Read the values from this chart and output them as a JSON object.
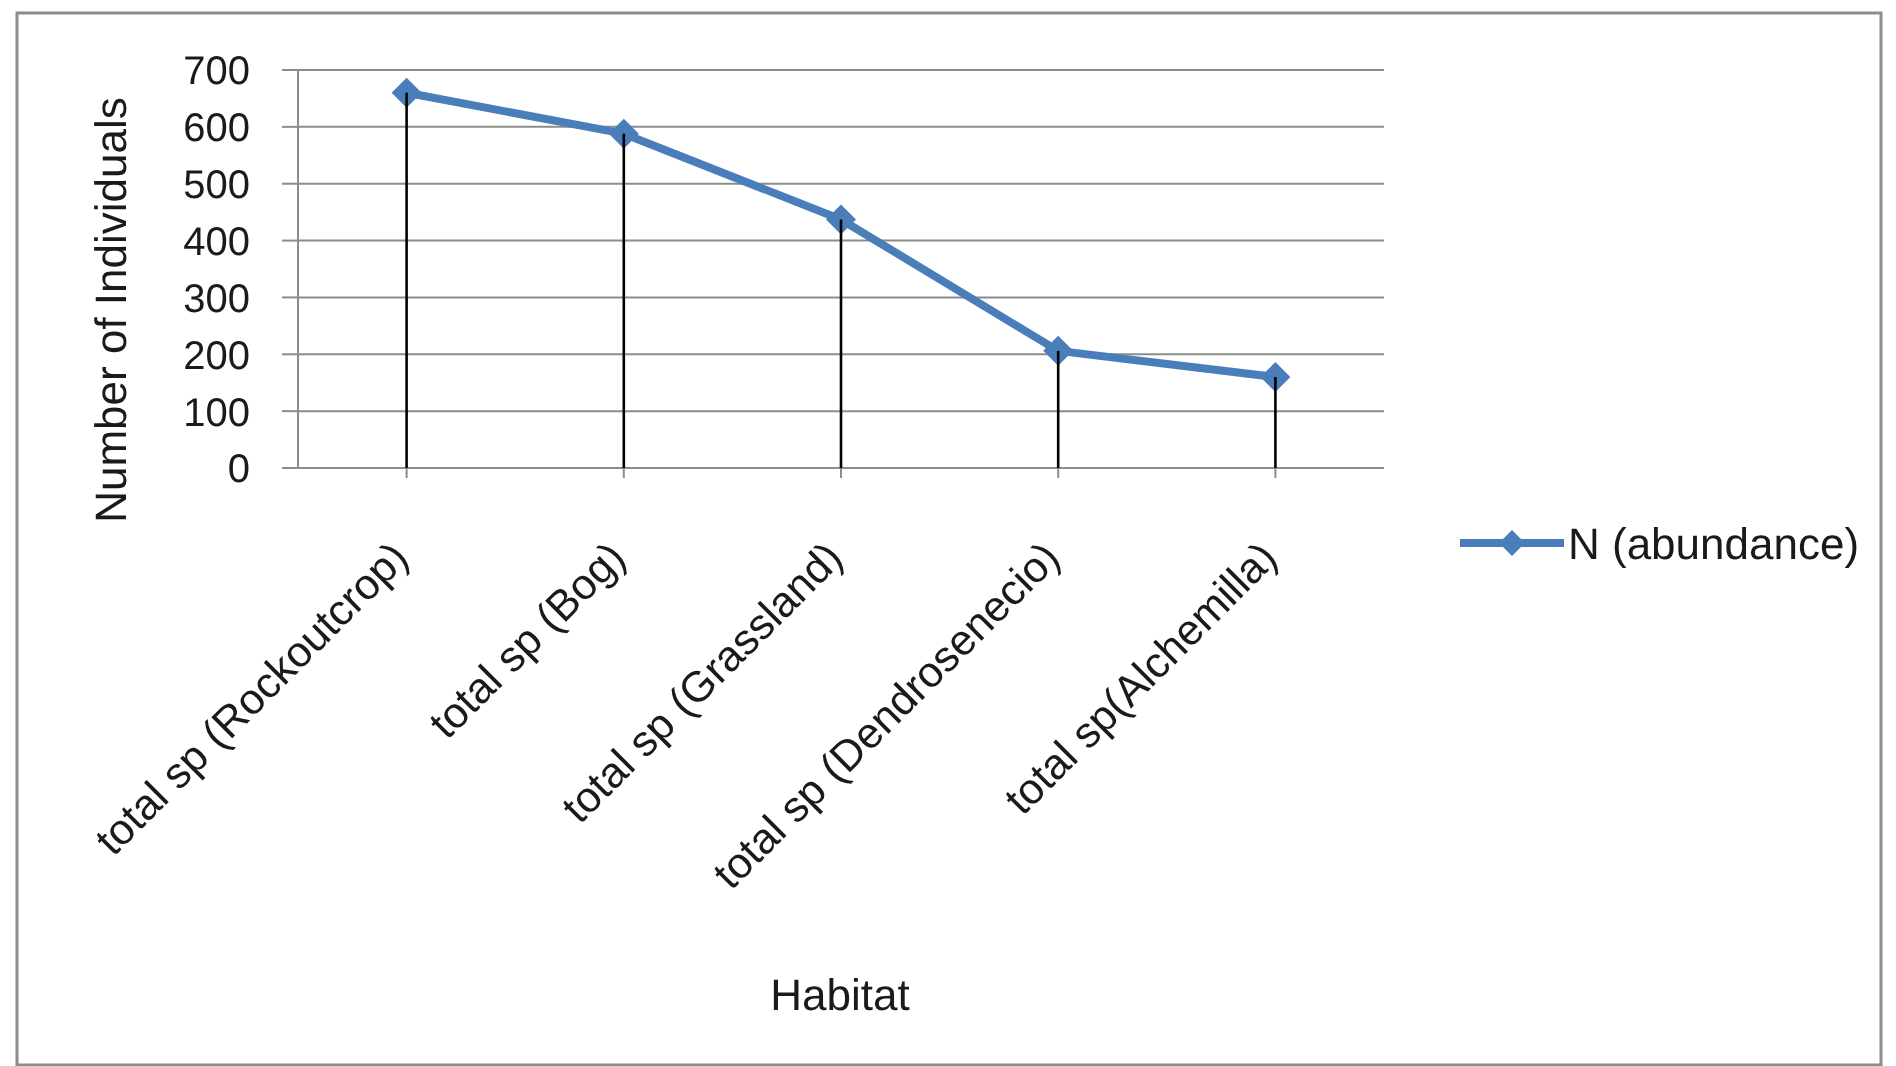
{
  "chart_data": {
    "type": "line",
    "xlabel": "Habitat",
    "ylabel": "Number of Individuals",
    "categories": [
      "total sp (Rockoutcrop)",
      "total sp (Bog)",
      "total sp (Grassland)",
      "total sp (Dendrosenecio)",
      "total sp(Alchemilla)"
    ],
    "series": [
      {
        "name": "N (abundance)",
        "color": "#4a7ebb",
        "values": [
          660,
          588,
          437,
          206,
          160
        ]
      },
      {
        "type": "bar",
        "color": "#000000",
        "values": [
          660,
          588,
          437,
          206,
          160
        ]
      }
    ],
    "marker": "diamond",
    "ylim": [
      0,
      700
    ],
    "yticks": [
      0,
      100,
      200,
      300,
      400,
      500,
      600,
      700
    ],
    "grid": "y",
    "legend": "right"
  }
}
